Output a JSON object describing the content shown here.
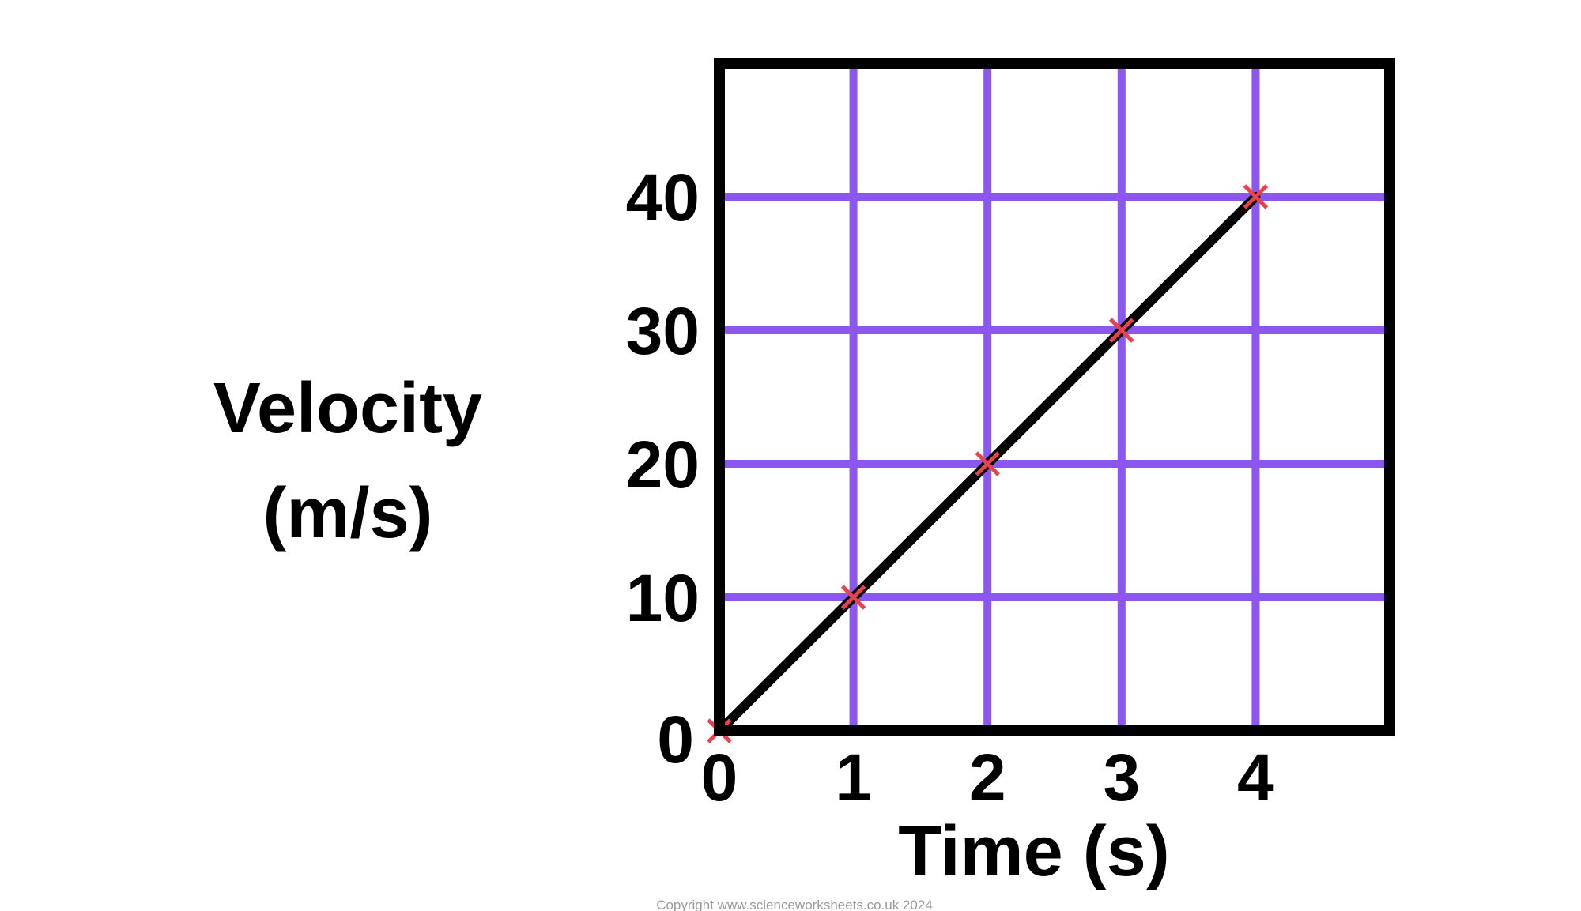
{
  "chart_data": {
    "type": "line",
    "x": [
      0,
      1,
      2,
      3,
      4
    ],
    "series": [
      {
        "values": [
          0,
          10,
          20,
          30,
          40
        ]
      }
    ],
    "xlabel": "Time (s)",
    "ylabel_lines": [
      "Velocity",
      "(m/s)"
    ],
    "x_ticks": [
      "0",
      "1",
      "2",
      "3",
      "4"
    ],
    "y_ticks": [
      "0",
      "10",
      "20",
      "30",
      "40"
    ],
    "xlim": [
      0,
      5
    ],
    "ylim": [
      0,
      50
    ],
    "grid": true,
    "marker": "x",
    "colors": {
      "line": "#000000",
      "grid": "#8b57f0",
      "marker": "#e8424a",
      "frame": "#000000"
    }
  },
  "footer": {
    "copyright": "Copyright www.scienceworksheets.co.uk 2024"
  }
}
